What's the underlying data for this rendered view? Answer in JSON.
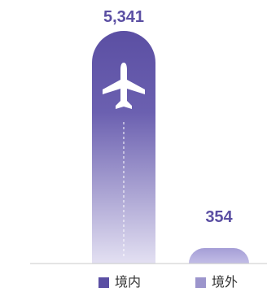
{
  "chart_data": {
    "type": "bar",
    "categories": [
      "境内",
      "境外"
    ],
    "values": [
      5341,
      354
    ],
    "value_labels": [
      "5,341",
      "354"
    ],
    "colors": {
      "domestic_top": "#5b4fa3",
      "domestic_bottom": "#dedaf0",
      "international": "#aba4d8",
      "value_text": "#5b4fa3",
      "baseline": "#c8c8c8"
    },
    "legend": [
      {
        "label": "境内",
        "color": "#5b4fa3"
      },
      {
        "label": "境外",
        "color": "#9c95cc"
      }
    ],
    "icon": "airplane-icon",
    "legend_position": "bottom",
    "grid": false
  }
}
